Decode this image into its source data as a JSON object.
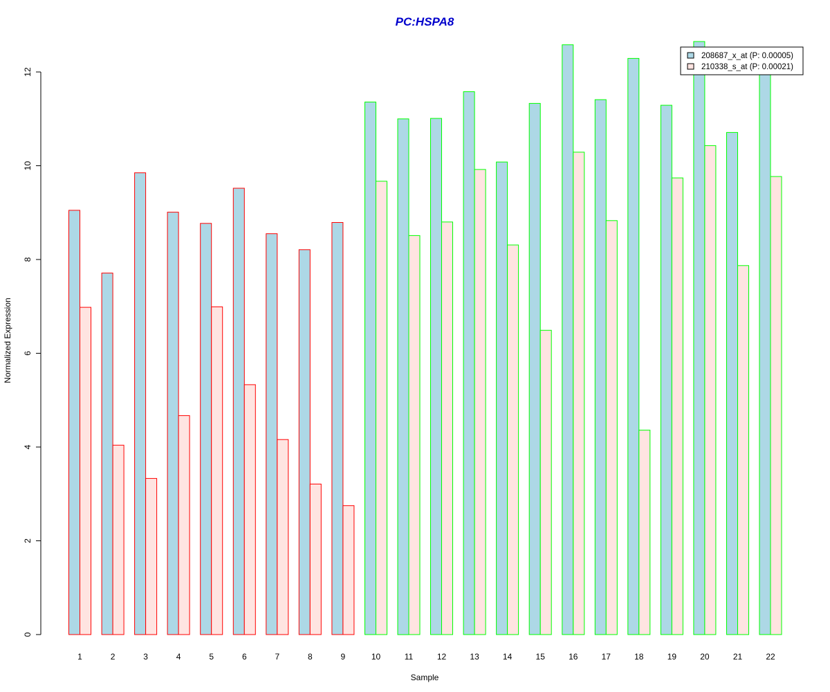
{
  "chart_data": {
    "type": "bar",
    "title": "PC:HSPA8",
    "xlabel": "Sample",
    "ylabel": "Normalized Expression",
    "categories": [
      "1",
      "2",
      "3",
      "4",
      "5",
      "6",
      "7",
      "8",
      "9",
      "10",
      "11",
      "12",
      "13",
      "14",
      "15",
      "16",
      "17",
      "18",
      "19",
      "20",
      "21",
      "22"
    ],
    "yticks": [
      0,
      2,
      4,
      6,
      8,
      10,
      12
    ],
    "ylim": [
      0,
      12.6
    ],
    "grid": false,
    "legend_position": "top-right",
    "series": [
      {
        "name": "208687_x_at (P: 0.00005)",
        "fill": "#add8e6",
        "values": [
          9.05,
          7.71,
          9.85,
          9.01,
          8.77,
          9.52,
          8.55,
          8.21,
          8.79,
          11.36,
          11.0,
          11.01,
          11.58,
          10.08,
          11.33,
          12.58,
          11.41,
          12.29,
          11.29,
          12.65,
          10.71,
          12.0
        ]
      },
      {
        "name": "210338_s_at (P: 0.00021)",
        "fill": "#ffe4e1",
        "values": [
          6.98,
          4.04,
          3.33,
          4.67,
          6.99,
          5.33,
          4.16,
          3.21,
          2.75,
          9.67,
          8.51,
          8.8,
          9.92,
          8.31,
          6.49,
          10.29,
          8.83,
          4.36,
          9.74,
          10.43,
          7.87,
          9.77
        ]
      }
    ],
    "group_border_colors": [
      "#ff0000",
      "#ff0000",
      "#ff0000",
      "#ff0000",
      "#ff0000",
      "#ff0000",
      "#ff0000",
      "#ff0000",
      "#ff0000",
      "#00ff00",
      "#00ff00",
      "#00ff00",
      "#00ff00",
      "#00ff00",
      "#00ff00",
      "#00ff00",
      "#00ff00",
      "#00ff00",
      "#00ff00",
      "#00ff00",
      "#00ff00",
      "#00ff00"
    ],
    "title_color": "#0000cc"
  }
}
